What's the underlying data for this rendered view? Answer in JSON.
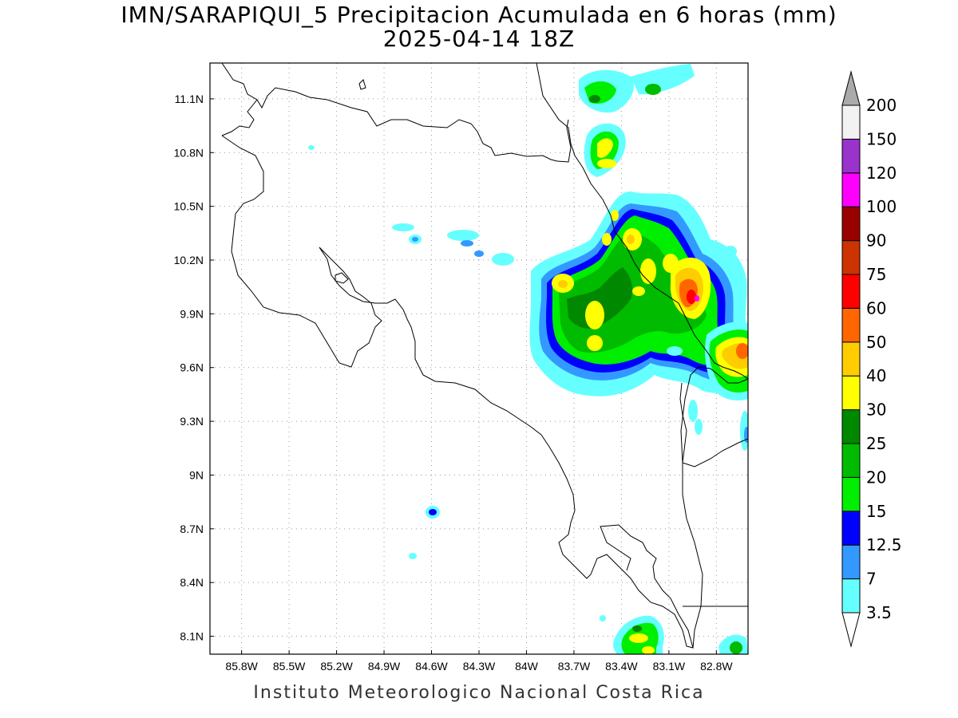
{
  "title_line1": "IMN/SARAPIQUI_5 Precipitacion Acumulada en 6 horas (mm)",
  "title_line2": "2025-04-14 18Z",
  "footer": "Instituto Meteorologico Nacional Costa Rica",
  "map": {
    "lon_range": [
      -86.0,
      -82.6
    ],
    "lat_range": [
      8.0,
      11.3
    ],
    "lon_ticks": [
      "85.8W",
      "85.5W",
      "85.2W",
      "84.9W",
      "84.6W",
      "84.3W",
      "84W",
      "83.7W",
      "83.4W",
      "83.1W",
      "82.8W"
    ],
    "lat_ticks": [
      "11.1N",
      "10.8N",
      "10.5N",
      "10.2N",
      "9.9N",
      "9.6N",
      "9.3N",
      "9N",
      "8.7N",
      "8.4N",
      "8.1N"
    ],
    "grid": "dotted"
  },
  "colorbar": {
    "levels": [
      "3.5",
      "7",
      "12.5",
      "15",
      "20",
      "25",
      "30",
      "40",
      "50",
      "60",
      "75",
      "90",
      "100",
      "120",
      "150",
      "200"
    ],
    "colors": [
      "#ffffff",
      "#66ffff",
      "#3399ff",
      "#0000ff",
      "#00ee00",
      "#00bb00",
      "#008800",
      "#ffff00",
      "#ffcc00",
      "#ff6600",
      "#ff0000",
      "#cc3300",
      "#990000",
      "#ff00ff",
      "#9933cc",
      "#f2f2f2",
      "#aaaaaa"
    ]
  }
}
